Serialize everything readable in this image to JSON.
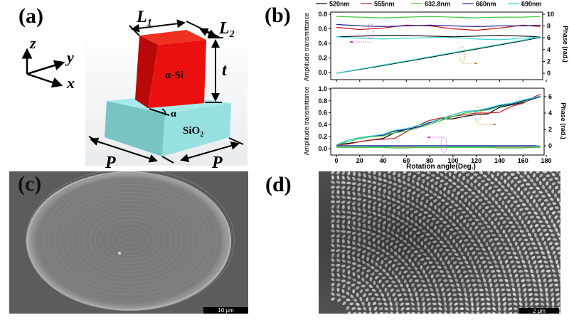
{
  "panels": {
    "a": {
      "label": "(a)",
      "axes": {
        "z": "z",
        "y": "y",
        "x": "x"
      },
      "dimensions": {
        "L1": "L",
        "L1_sub": "1",
        "L2": "L",
        "L2_sub": "2",
        "t": "t",
        "P_left": "P",
        "P_right": "P",
        "alpha": "α"
      },
      "pillar_label": "α-Si",
      "substrate_label": "SiO",
      "substrate_sub": "2",
      "colors": {
        "pillar": "#e8120c",
        "substrate": "#8fdcdc"
      }
    },
    "b": {
      "label": "(b)"
    },
    "c": {
      "label": "(c)",
      "scale_bar": "10 μm"
    },
    "d": {
      "label": "(d)",
      "scale_bar": "2 μm"
    }
  },
  "chart_data": [
    {
      "type": "line",
      "title": "",
      "xlabel": "",
      "ylabel": "Amplitude transmittance",
      "y2label": "Phase (rad.)",
      "xlim": [
        0,
        180
      ],
      "ylim": [
        0.0,
        0.8
      ],
      "y2lim": [
        0,
        10
      ],
      "yticks": [
        "0.0",
        "0.2",
        "0.4",
        "0.6",
        "0.8"
      ],
      "y2ticks": [
        "0",
        "2",
        "4",
        "6",
        "8",
        "10"
      ],
      "legend_position": "top",
      "legend": [
        "520nm",
        "555nm",
        "632.8nm",
        "660nm",
        "690nm"
      ],
      "colors": [
        "#000000",
        "#c0191b",
        "#3ccc3c",
        "#23239c",
        "#33d6d6"
      ],
      "x": [
        0,
        20,
        40,
        60,
        80,
        100,
        120,
        140,
        160,
        175
      ],
      "series_amplitude": [
        {
          "name": "520nm",
          "values": [
            0.49,
            0.5,
            0.51,
            0.51,
            0.5,
            0.49,
            0.5,
            0.51,
            0.5,
            0.49
          ]
        },
        {
          "name": "555nm",
          "values": [
            0.62,
            0.59,
            0.61,
            0.65,
            0.64,
            0.6,
            0.58,
            0.61,
            0.65,
            0.63
          ]
        },
        {
          "name": "632.8nm",
          "values": [
            0.77,
            0.76,
            0.75,
            0.76,
            0.77,
            0.76,
            0.75,
            0.76,
            0.76,
            0.77
          ]
        },
        {
          "name": "660nm",
          "values": [
            0.66,
            0.64,
            0.63,
            0.64,
            0.65,
            0.64,
            0.63,
            0.64,
            0.64,
            0.65
          ]
        },
        {
          "name": "690nm",
          "values": [
            0.49,
            0.47,
            0.46,
            0.47,
            0.48,
            0.48,
            0.46,
            0.45,
            0.47,
            0.49
          ]
        }
      ],
      "series_phase": [
        {
          "name": "520nm",
          "values": [
            0.0,
            0.65,
            1.3,
            2.0,
            2.7,
            3.4,
            4.1,
            4.8,
            5.5,
            6.1
          ]
        },
        {
          "name": "690nm",
          "values": [
            0.0,
            0.7,
            1.4,
            2.1,
            2.8,
            3.5,
            4.2,
            4.9,
            5.6,
            6.2
          ]
        }
      ]
    },
    {
      "type": "line",
      "title": "",
      "xlabel": "Rotation angle(Deg.)",
      "ylabel": "Amplitude transmittance",
      "y2label": "Phase (rad.)",
      "xlim": [
        0,
        180
      ],
      "ylim": [
        0.0,
        1.0
      ],
      "y2lim": [
        -1,
        7
      ],
      "xticks": [
        "0",
        "20",
        "40",
        "60",
        "80",
        "100",
        "120",
        "140",
        "160",
        "180"
      ],
      "yticks": [
        "0.0",
        "0.2",
        "0.4",
        "0.6",
        "0.8",
        "1.0"
      ],
      "y2ticks": [
        "0",
        "2",
        "4",
        "6"
      ],
      "colors": [
        "#000000",
        "#c0191b",
        "#3ccc3c",
        "#23239c",
        "#33d6d6"
      ],
      "x": [
        0,
        10,
        20,
        30,
        40,
        50,
        60,
        70,
        80,
        90,
        100,
        110,
        120,
        130,
        140,
        150,
        160,
        170,
        175
      ],
      "series_phase": [
        {
          "name": "520nm",
          "values": [
            0.1,
            0.3,
            0.5,
            0.7,
            0.9,
            1.6,
            2.0,
            2.3,
            2.8,
            3.3,
            3.3,
            3.6,
            3.8,
            3.9,
            4.7,
            5.0,
            5.3,
            5.8,
            6.0
          ]
        },
        {
          "name": "555nm",
          "values": [
            0.1,
            0.2,
            0.5,
            0.7,
            0.8,
            0.9,
            1.7,
            2.5,
            3.1,
            3.4,
            3.6,
            3.8,
            4.0,
            4.0,
            4.1,
            4.8,
            5.2,
            6.0,
            6.3
          ]
        },
        {
          "name": "632.8nm",
          "values": [
            0.1,
            0.5,
            0.9,
            1.1,
            1.2,
            1.6,
            1.8,
            2.2,
            2.6,
            3.1,
            3.6,
            4.0,
            4.2,
            4.4,
            4.8,
            5.1,
            5.4,
            5.8,
            6.0
          ]
        },
        {
          "name": "660nm",
          "values": [
            0.1,
            0.7,
            1.0,
            1.2,
            1.3,
            1.8,
            2.0,
            2.3,
            2.8,
            3.3,
            3.8,
            4.2,
            4.3,
            4.5,
            4.9,
            5.1,
            5.5,
            5.8,
            6.0
          ]
        },
        {
          "name": "690nm",
          "values": [
            0.1,
            0.7,
            1.0,
            1.2,
            1.4,
            1.9,
            2.1,
            2.5,
            2.9,
            3.3,
            3.8,
            4.2,
            4.3,
            4.6,
            5.0,
            5.2,
            5.6,
            5.9,
            6.1
          ]
        }
      ],
      "series_amplitude": [
        {
          "name": "520nm",
          "values": [
            0.03,
            0.03,
            0.03,
            0.03,
            0.03,
            0.03,
            0.03,
            0.03,
            0.03,
            0.03,
            0.03,
            0.03,
            0.03,
            0.03,
            0.03,
            0.03,
            0.03,
            0.03,
            0.03
          ]
        },
        {
          "name": "555nm",
          "values": [
            0.03,
            0.03,
            0.03,
            0.04,
            0.04,
            0.03,
            0.03,
            0.03,
            0.03,
            0.03,
            0.04,
            0.04,
            0.04,
            0.04,
            0.03,
            0.03,
            0.03,
            0.03,
            0.03
          ]
        },
        {
          "name": "632.8nm",
          "values": [
            0.02,
            0.02,
            0.02,
            0.02,
            0.02,
            0.01,
            0.01,
            0.02,
            0.02,
            0.02,
            0.02,
            0.02,
            0.02,
            0.02,
            0.01,
            0.01,
            0.01,
            0.02,
            0.02
          ]
        },
        {
          "name": "660nm",
          "values": [
            0.05,
            0.05,
            0.05,
            0.05,
            0.05,
            0.05,
            0.05,
            0.05,
            0.05,
            0.05,
            0.05,
            0.05,
            0.05,
            0.05,
            0.05,
            0.05,
            0.05,
            0.05,
            0.04
          ]
        },
        {
          "name": "690nm",
          "values": [
            0.04,
            0.04,
            0.04,
            0.04,
            0.04,
            0.04,
            0.04,
            0.04,
            0.04,
            0.04,
            0.04,
            0.04,
            0.04,
            0.04,
            0.04,
            0.04,
            0.04,
            0.04,
            0.04
          ]
        }
      ]
    }
  ]
}
